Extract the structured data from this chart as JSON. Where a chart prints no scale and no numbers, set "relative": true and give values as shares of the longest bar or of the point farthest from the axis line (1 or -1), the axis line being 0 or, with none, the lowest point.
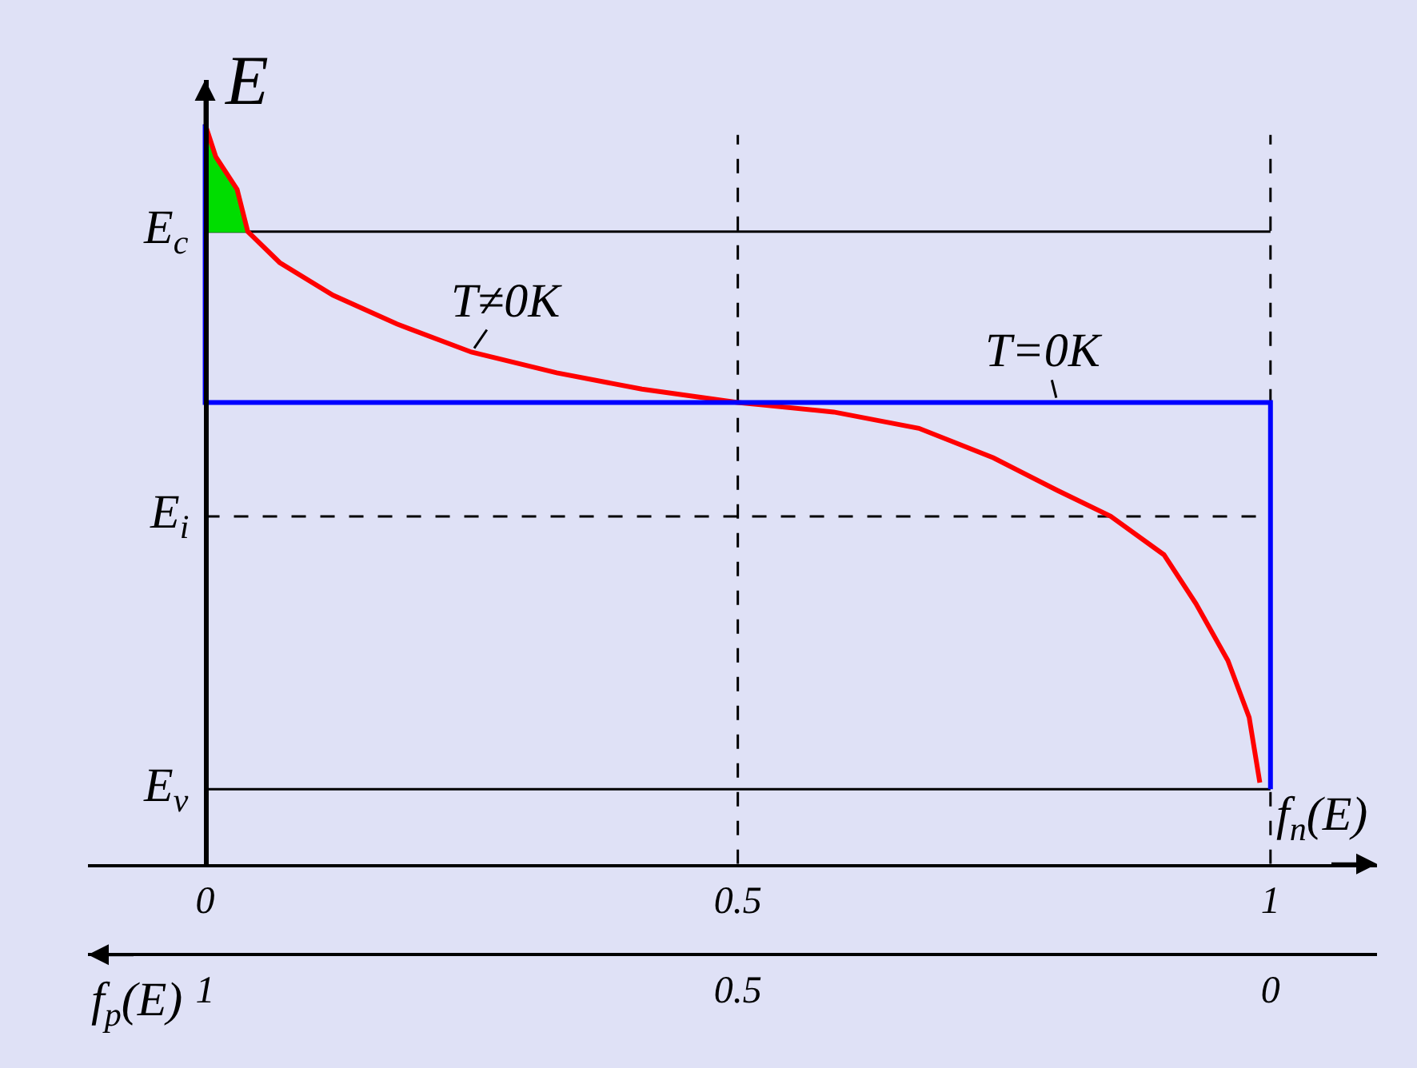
{
  "chart_data": {
    "type": "line",
    "relative": true,
    "ylabel": "E",
    "xlabel": "f$_{n}$(E)",
    "x2label": "f$_{p}$(E)",
    "xlim": [
      -0.11,
      1.1
    ],
    "xticks": [
      0,
      0.5,
      1
    ],
    "x2lim": [
      1.11,
      -0.1
    ],
    "x2ticks": [
      1,
      0.5,
      0
    ],
    "legend": false,
    "grid": false,
    "marker": "none",
    "series": [
      {
        "type": "area",
        "color": "#00dd00",
        "x": [
          0,
          0.01,
          0.03,
          0.04,
          0
        ],
        "values": [
          1.0,
          0.956,
          0.912,
          0.855,
          0.855
        ]
      },
      {
        "name": "T≠0K",
        "color": "#ff0000",
        "x": [
          0,
          0.01,
          0.03,
          0.04,
          0.07,
          0.12,
          0.18,
          0.25,
          0.33,
          0.41,
          0.5,
          0.59,
          0.67,
          0.74,
          0.8,
          0.85,
          0.9,
          0.93,
          0.96,
          0.98,
          0.99
        ],
        "values": [
          1.0,
          0.956,
          0.912,
          0.855,
          0.813,
          0.769,
          0.73,
          0.692,
          0.664,
          0.642,
          0.624,
          0.611,
          0.589,
          0.549,
          0.505,
          0.47,
          0.418,
          0.352,
          0.275,
          0.198,
          0.11
        ]
      },
      {
        "name": "T=0K",
        "type": "step",
        "color": "#0000ff",
        "x": [
          0,
          0,
          1,
          1
        ],
        "values": [
          1.0,
          0.624,
          0.624,
          0.101
        ]
      }
    ],
    "ref_lines": [
      {
        "axis": "x",
        "value": 0.5,
        "color": "#000000",
        "line_style": "dashed"
      },
      {
        "axis": "x",
        "value": 1,
        "color": "#000000",
        "line_style": "dashed"
      },
      {
        "axis": "y",
        "value": 0.855,
        "label": "E$_{c}$",
        "color": "#000000",
        "line_style": "solid"
      },
      {
        "axis": "y",
        "value": 0.47,
        "label": "E$_{i}$",
        "color": "#000000",
        "line_style": "dashed"
      },
      {
        "axis": "y",
        "value": 0.101,
        "label": "E$_{v}$",
        "color": "#000000",
        "line_style": "solid"
      }
    ]
  }
}
